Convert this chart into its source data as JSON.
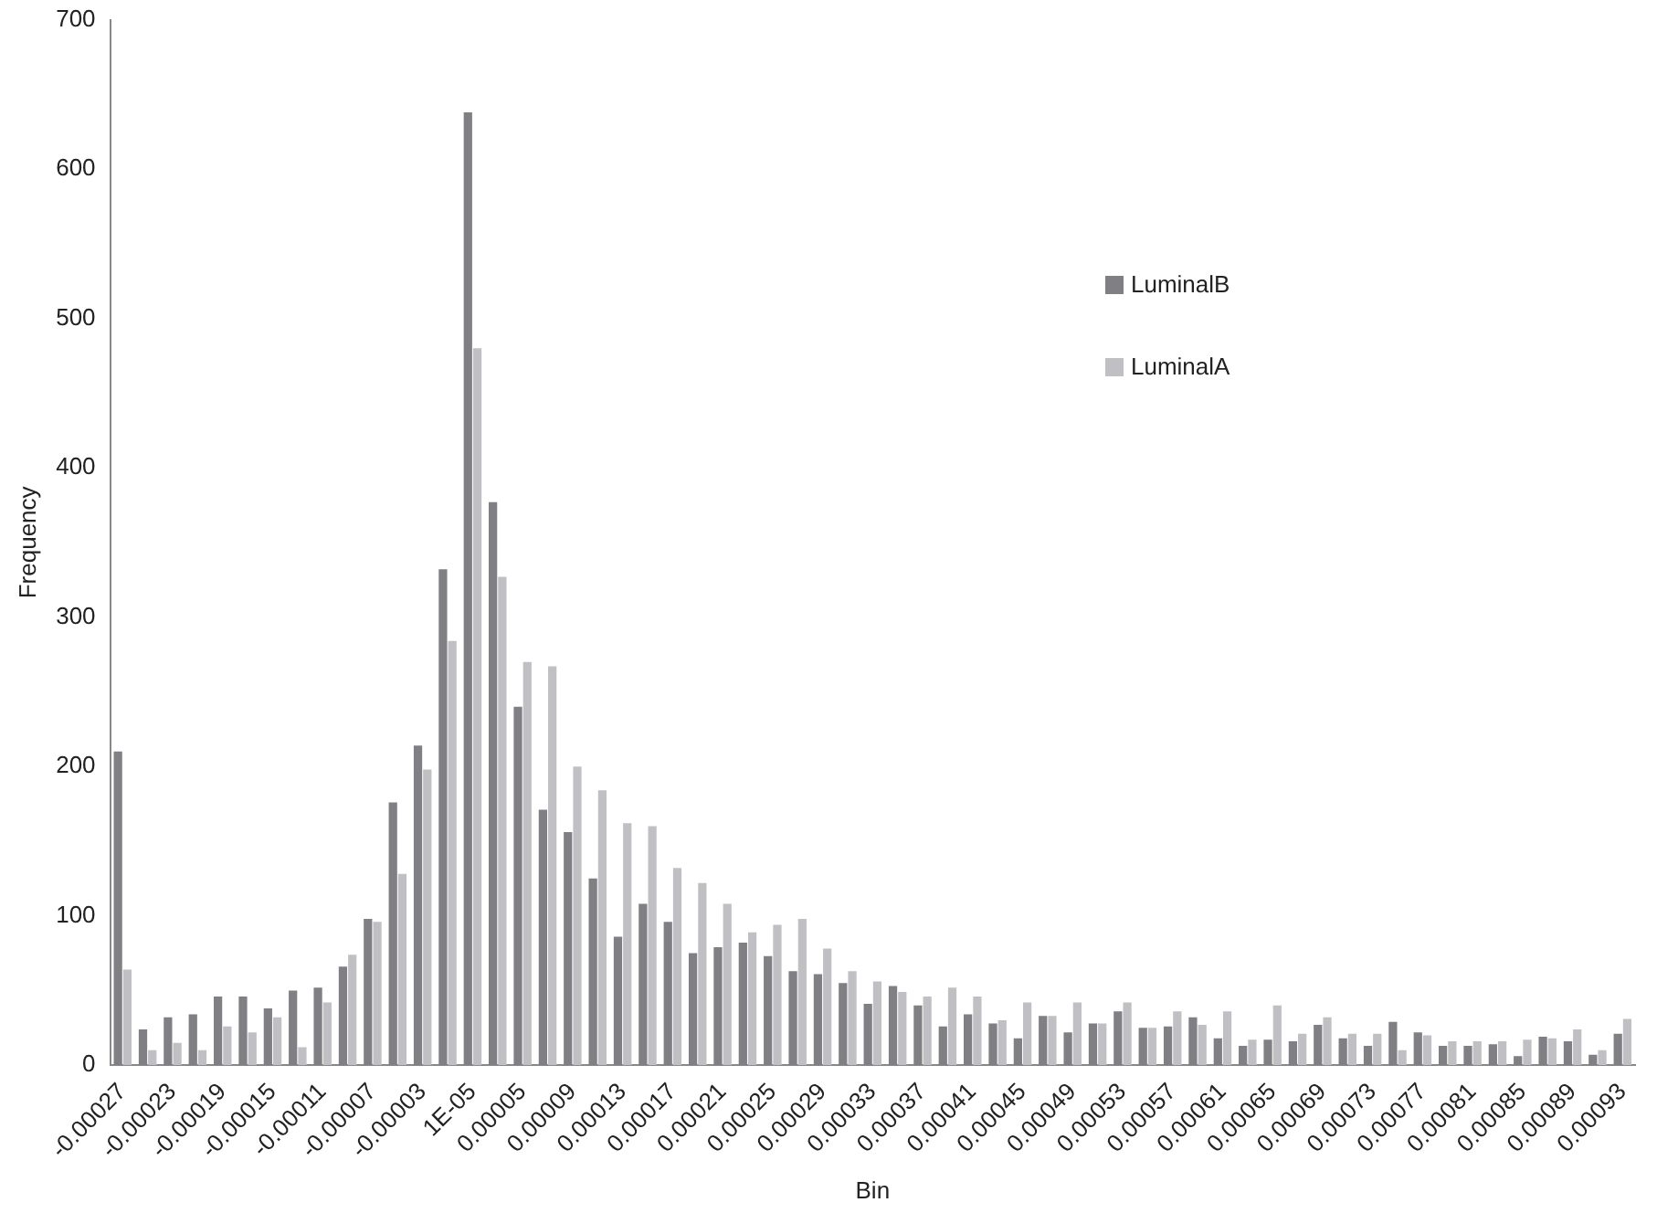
{
  "chart_data": {
    "type": "bar",
    "xlabel": "Bin",
    "ylabel": "Frequency",
    "categories": [
      "-0.00027",
      null,
      "-0.00023",
      null,
      "-0.00019",
      null,
      "-0.00015",
      null,
      "-0.00011",
      null,
      "-0.00007",
      null,
      "-0.00003",
      null,
      "1E-05",
      null,
      "0.00005",
      null,
      "0.00009",
      null,
      "0.00013",
      null,
      "0.00017",
      null,
      "0.00021",
      null,
      "0.00025",
      null,
      "0.00029",
      null,
      "0.00033",
      null,
      "0.00037",
      null,
      "0.00041",
      null,
      "0.00045",
      null,
      "0.00049",
      null,
      "0.00053",
      null,
      "0.00057",
      null,
      "0.00061",
      null,
      "0.00065",
      null,
      "0.00069",
      null,
      "0.00073",
      null,
      "0.00077",
      null,
      "0.00081",
      null,
      "0.00085",
      null,
      "0.00089",
      null,
      "0.00093"
    ],
    "series": [
      {
        "name": "LuminalB",
        "color": "#7f7f84",
        "values": [
          210,
          24,
          32,
          34,
          46,
          46,
          38,
          50,
          52,
          66,
          98,
          176,
          214,
          332,
          638,
          377,
          240,
          171,
          156,
          125,
          86,
          108,
          96,
          75,
          79,
          82,
          73,
          63,
          61,
          55,
          41,
          53,
          40,
          26,
          34,
          28,
          18,
          33,
          22,
          28,
          36,
          25,
          26,
          32,
          18,
          13,
          17,
          16,
          27,
          18,
          13,
          29,
          22,
          13,
          13,
          14,
          6,
          19,
          16,
          7,
          21
        ]
      },
      {
        "name": "LuminalA",
        "color": "#c0c0c4",
        "values": [
          64,
          10,
          15,
          10,
          26,
          22,
          32,
          12,
          42,
          74,
          96,
          128,
          198,
          284,
          480,
          327,
          270,
          267,
          200,
          184,
          162,
          160,
          132,
          122,
          108,
          89,
          94,
          98,
          78,
          63,
          56,
          49,
          46,
          52,
          46,
          30,
          42,
          33,
          42,
          28,
          42,
          25,
          36,
          27,
          36,
          17,
          40,
          21,
          32,
          21,
          21,
          10,
          20,
          16,
          16,
          16,
          17,
          18,
          24,
          10,
          31
        ]
      }
    ],
    "ylim": [
      0,
      700
    ],
    "yticks": [
      0,
      100,
      200,
      300,
      400,
      500,
      600,
      700
    ],
    "grid": false,
    "legend": "top right"
  }
}
